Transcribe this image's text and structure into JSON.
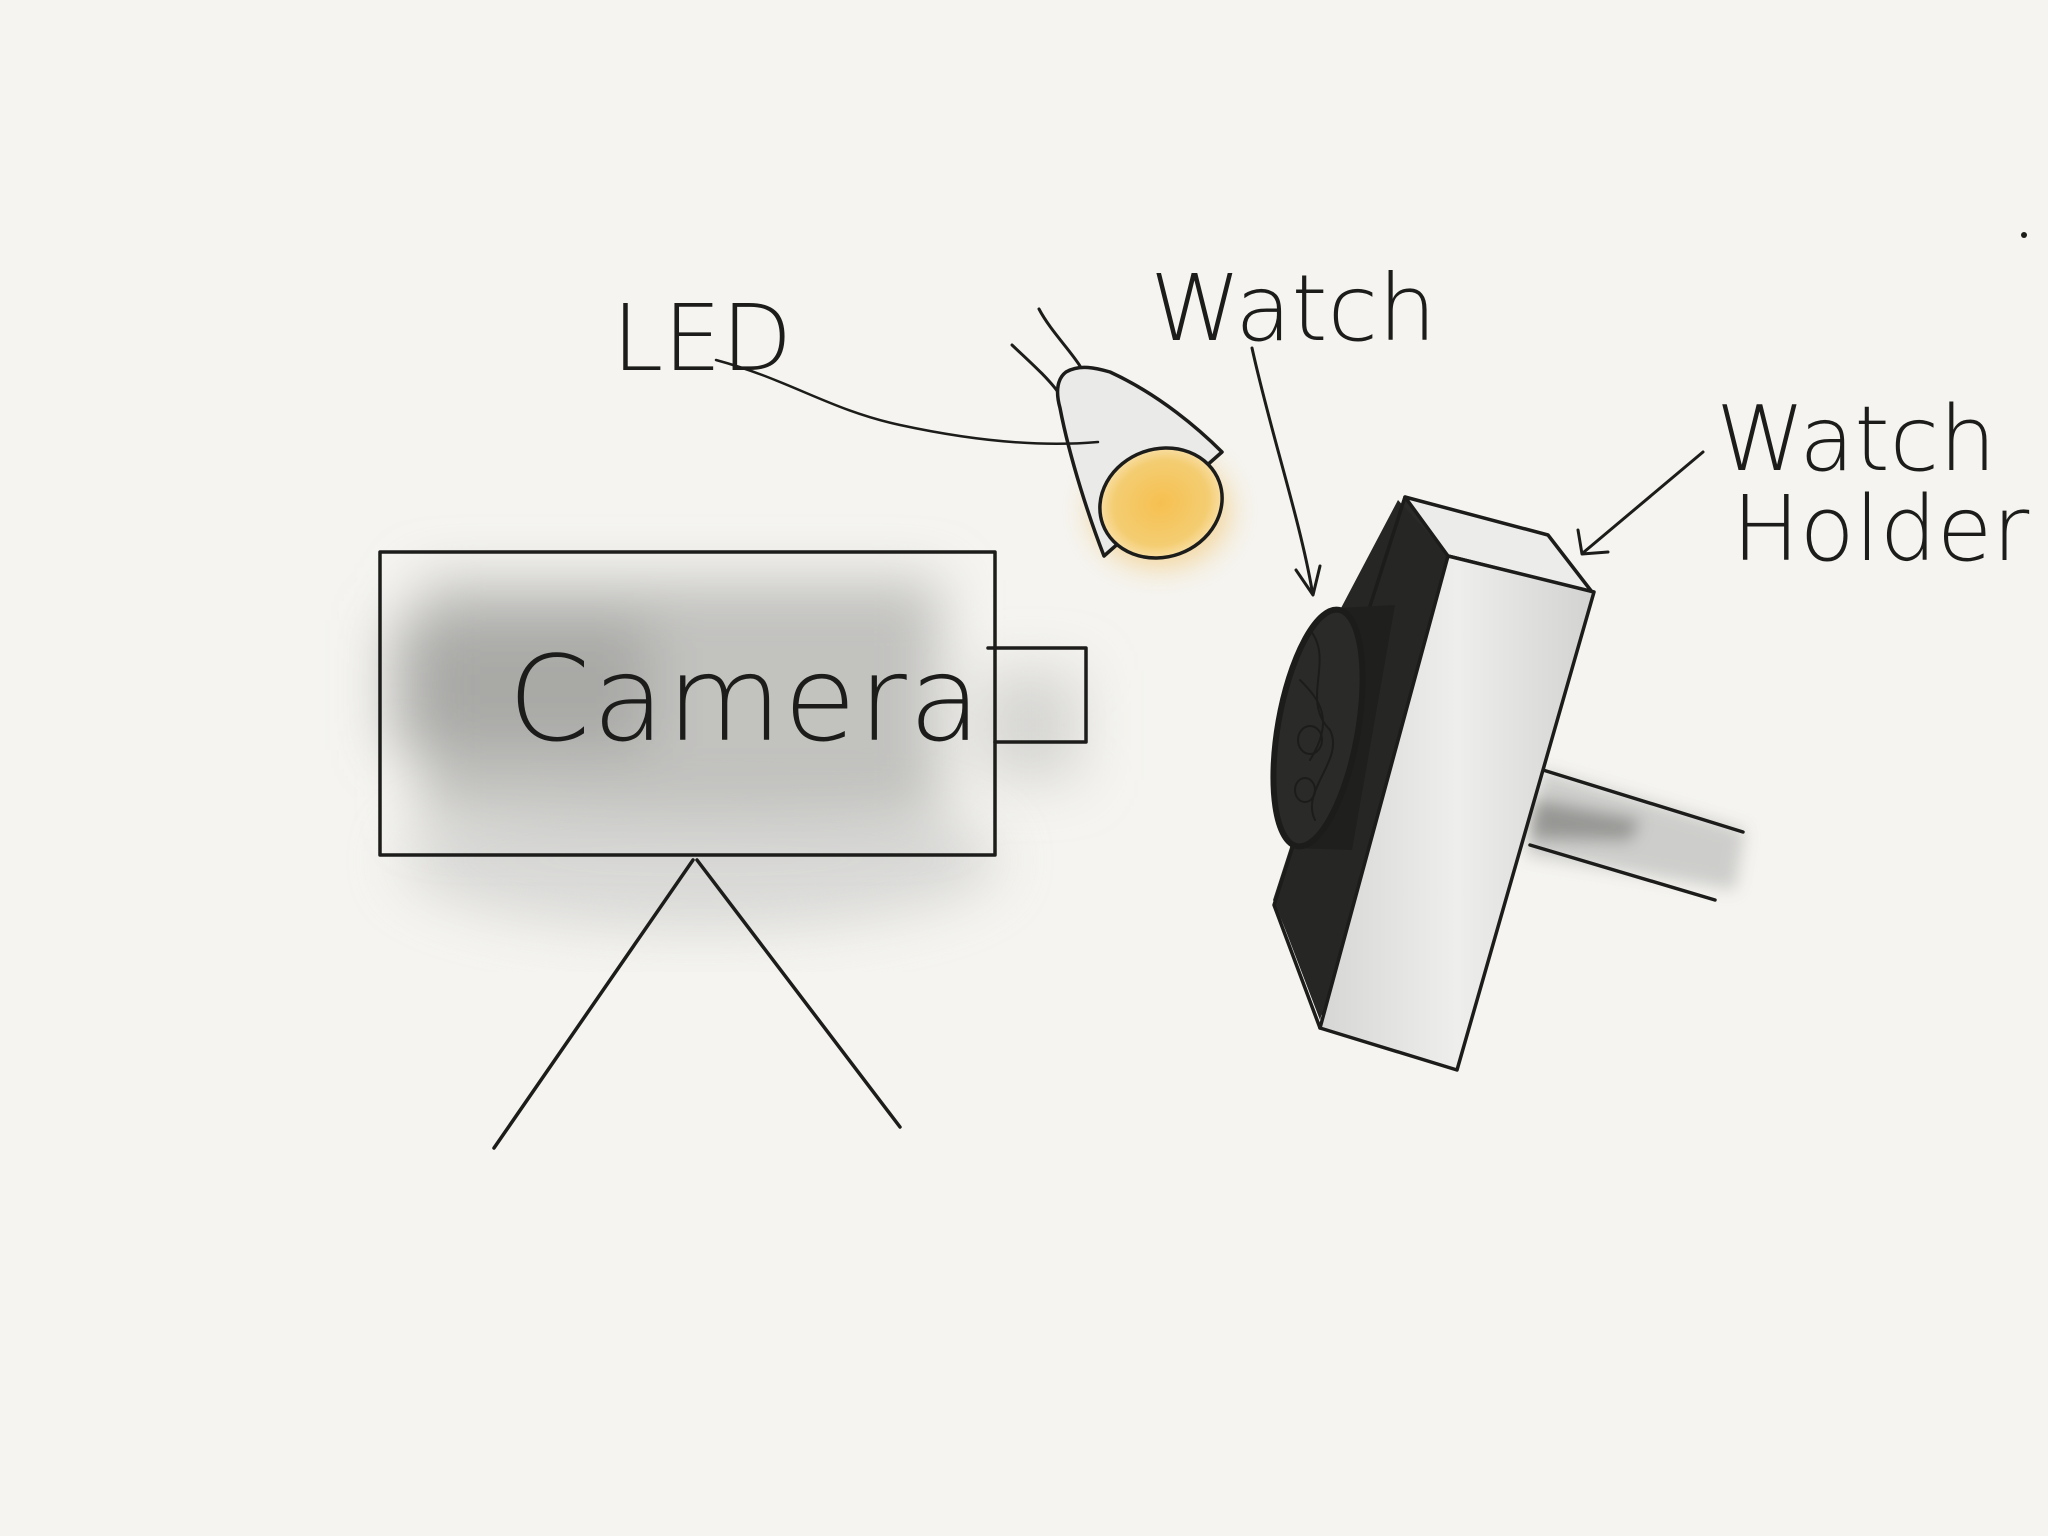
{
  "labels": {
    "camera": "Camera",
    "led": "LED",
    "watch": "Watch",
    "watch_holder_line1": "Watch",
    "watch_holder_line2": "Holder"
  },
  "colors": {
    "background": "#f5f4f0",
    "ink": "#1c1c1a",
    "camera_shading": "#bdbdbd",
    "led_glow": "#f2b23a",
    "holder_face": "#e4e4e2",
    "holder_side": "#2a2a28"
  },
  "icons": {
    "camera": "camera-body-icon",
    "tripod": "tripod-icon",
    "led": "led-spotlight-icon",
    "watch": "watch-face-icon",
    "holder": "watch-holder-block-icon"
  }
}
